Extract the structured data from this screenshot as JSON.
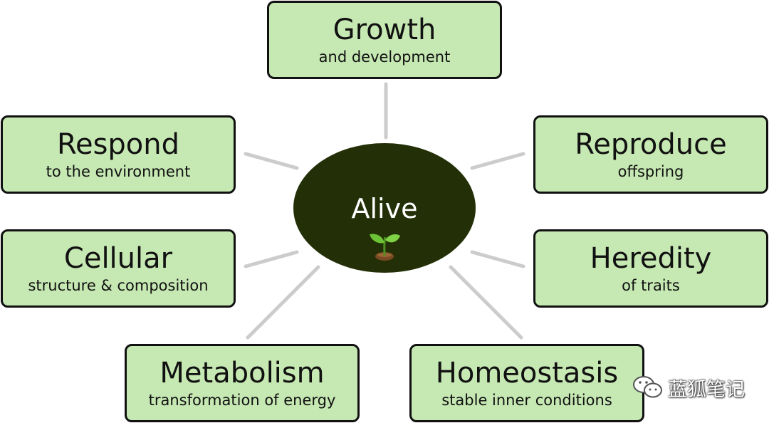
{
  "center": {
    "label": "Alive",
    "icon": "sprout-icon"
  },
  "nodes": [
    {
      "id": "growth",
      "title": "Growth",
      "subtitle": "and development"
    },
    {
      "id": "respond",
      "title": "Respond",
      "subtitle": "to the environment"
    },
    {
      "id": "reproduce",
      "title": "Reproduce",
      "subtitle": "offspring"
    },
    {
      "id": "cellular",
      "title": "Cellular",
      "subtitle": "structure & composition"
    },
    {
      "id": "heredity",
      "title": "Heredity",
      "subtitle": "of traits"
    },
    {
      "id": "metabolism",
      "title": "Metabolism",
      "subtitle": "transformation of energy"
    },
    {
      "id": "homeostasis",
      "title": "Homeostasis",
      "subtitle": "stable inner conditions"
    }
  ],
  "colors": {
    "box_fill": "#c6e8b3",
    "box_border": "#111111",
    "hub_fill": "#233007",
    "connector": "#cccccc"
  },
  "watermark": {
    "text": "蓝狐笔记",
    "icon": "wechat-icon"
  }
}
